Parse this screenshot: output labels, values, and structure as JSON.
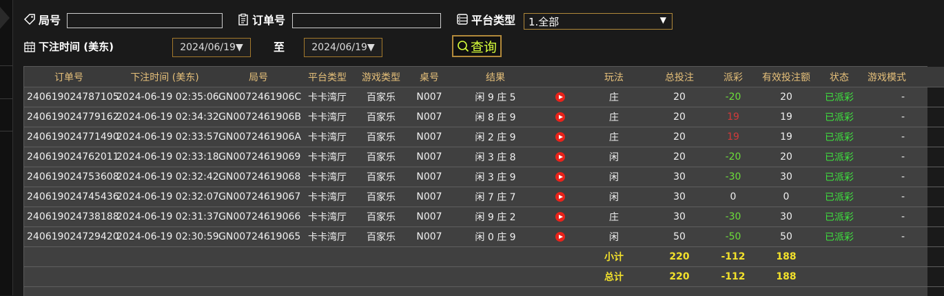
{
  "filters": {
    "round_label": "局号",
    "round_value": "",
    "order_label": "订单号",
    "order_value": "",
    "platform_label": "平台类型",
    "platform_selected": "1.全部",
    "bet_time_label": "下注时间 (美东)",
    "date_from": "2024/06/19",
    "to_label": "至",
    "date_to": "2024/06/19",
    "query_label": "查询"
  },
  "table": {
    "headers": [
      "订单号",
      "下注时间 (美东)",
      "局号",
      "平台类型",
      "游戏类型",
      "桌号",
      "结果",
      "",
      "玩法",
      "总投注",
      "派彩",
      "有效投注额",
      "状态",
      "游戏模式"
    ],
    "rows": [
      {
        "order": "240619024787105",
        "time": "2024-06-19 02:35:06",
        "round": "GN0072461906C",
        "platform": "卡卡湾厅",
        "game": "百家乐",
        "table": "N007",
        "result": "闲 9 庄 5",
        "play": "庄",
        "bet": "20",
        "payout": "-20",
        "payout_type": "neg",
        "valid": "20",
        "status": "已派彩",
        "mode": "-"
      },
      {
        "order": "240619024779162",
        "time": "2024-06-19 02:34:32",
        "round": "GN0072461906B",
        "platform": "卡卡湾厅",
        "game": "百家乐",
        "table": "N007",
        "result": "闲 8 庄 9",
        "play": "庄",
        "bet": "20",
        "payout": "19",
        "payout_type": "pos",
        "valid": "19",
        "status": "已派彩",
        "mode": "-"
      },
      {
        "order": "240619024771490",
        "time": "2024-06-19 02:33:57",
        "round": "GN0072461906A",
        "platform": "卡卡湾厅",
        "game": "百家乐",
        "table": "N007",
        "result": "闲 2 庄 9",
        "play": "庄",
        "bet": "20",
        "payout": "19",
        "payout_type": "pos",
        "valid": "19",
        "status": "已派彩",
        "mode": "-"
      },
      {
        "order": "240619024762011",
        "time": "2024-06-19 02:33:18",
        "round": "GN00724619069",
        "platform": "卡卡湾厅",
        "game": "百家乐",
        "table": "N007",
        "result": "闲 3 庄 8",
        "play": "闲",
        "bet": "20",
        "payout": "-20",
        "payout_type": "neg",
        "valid": "20",
        "status": "已派彩",
        "mode": "-"
      },
      {
        "order": "240619024753608",
        "time": "2024-06-19 02:32:42",
        "round": "GN00724619068",
        "platform": "卡卡湾厅",
        "game": "百家乐",
        "table": "N007",
        "result": "闲 3 庄 9",
        "play": "闲",
        "bet": "30",
        "payout": "-30",
        "payout_type": "neg",
        "valid": "30",
        "status": "已派彩",
        "mode": "-"
      },
      {
        "order": "240619024745436",
        "time": "2024-06-19 02:32:07",
        "round": "GN00724619067",
        "platform": "卡卡湾厅",
        "game": "百家乐",
        "table": "N007",
        "result": "闲 7 庄 7",
        "play": "闲",
        "bet": "30",
        "payout": "0",
        "payout_type": "zero",
        "valid": "0",
        "status": "已派彩",
        "mode": "-"
      },
      {
        "order": "240619024738188",
        "time": "2024-06-19 02:31:37",
        "round": "GN00724619066",
        "platform": "卡卡湾厅",
        "game": "百家乐",
        "table": "N007",
        "result": "闲 9 庄 2",
        "play": "庄",
        "bet": "30",
        "payout": "-30",
        "payout_type": "neg",
        "valid": "30",
        "status": "已派彩",
        "mode": "-"
      },
      {
        "order": "240619024729420",
        "time": "2024-06-19 02:30:59",
        "round": "GN00724619065",
        "platform": "卡卡湾厅",
        "game": "百家乐",
        "table": "N007",
        "result": "闲 0 庄 9",
        "play": "闲",
        "bet": "50",
        "payout": "-50",
        "payout_type": "neg",
        "valid": "50",
        "status": "已派彩",
        "mode": "-"
      }
    ],
    "subtotal": {
      "label": "小计",
      "bet": "220",
      "payout": "-112",
      "valid": "188"
    },
    "total": {
      "label": "总计",
      "bet": "220",
      "payout": "-112",
      "valid": "188"
    }
  },
  "colors": {
    "header_text": "#e6c07a",
    "negative_payout": "#6dde3a",
    "positive_payout": "#d13a3a",
    "status": "#3ee43e",
    "summary": "#f2e12b",
    "query_text": "#d7ff3a"
  },
  "icons": {
    "round": "tag-icon",
    "order": "clipboard-icon",
    "platform": "list-icon",
    "date": "calendar-icon",
    "query": "search-icon",
    "replay": "play-icon"
  }
}
